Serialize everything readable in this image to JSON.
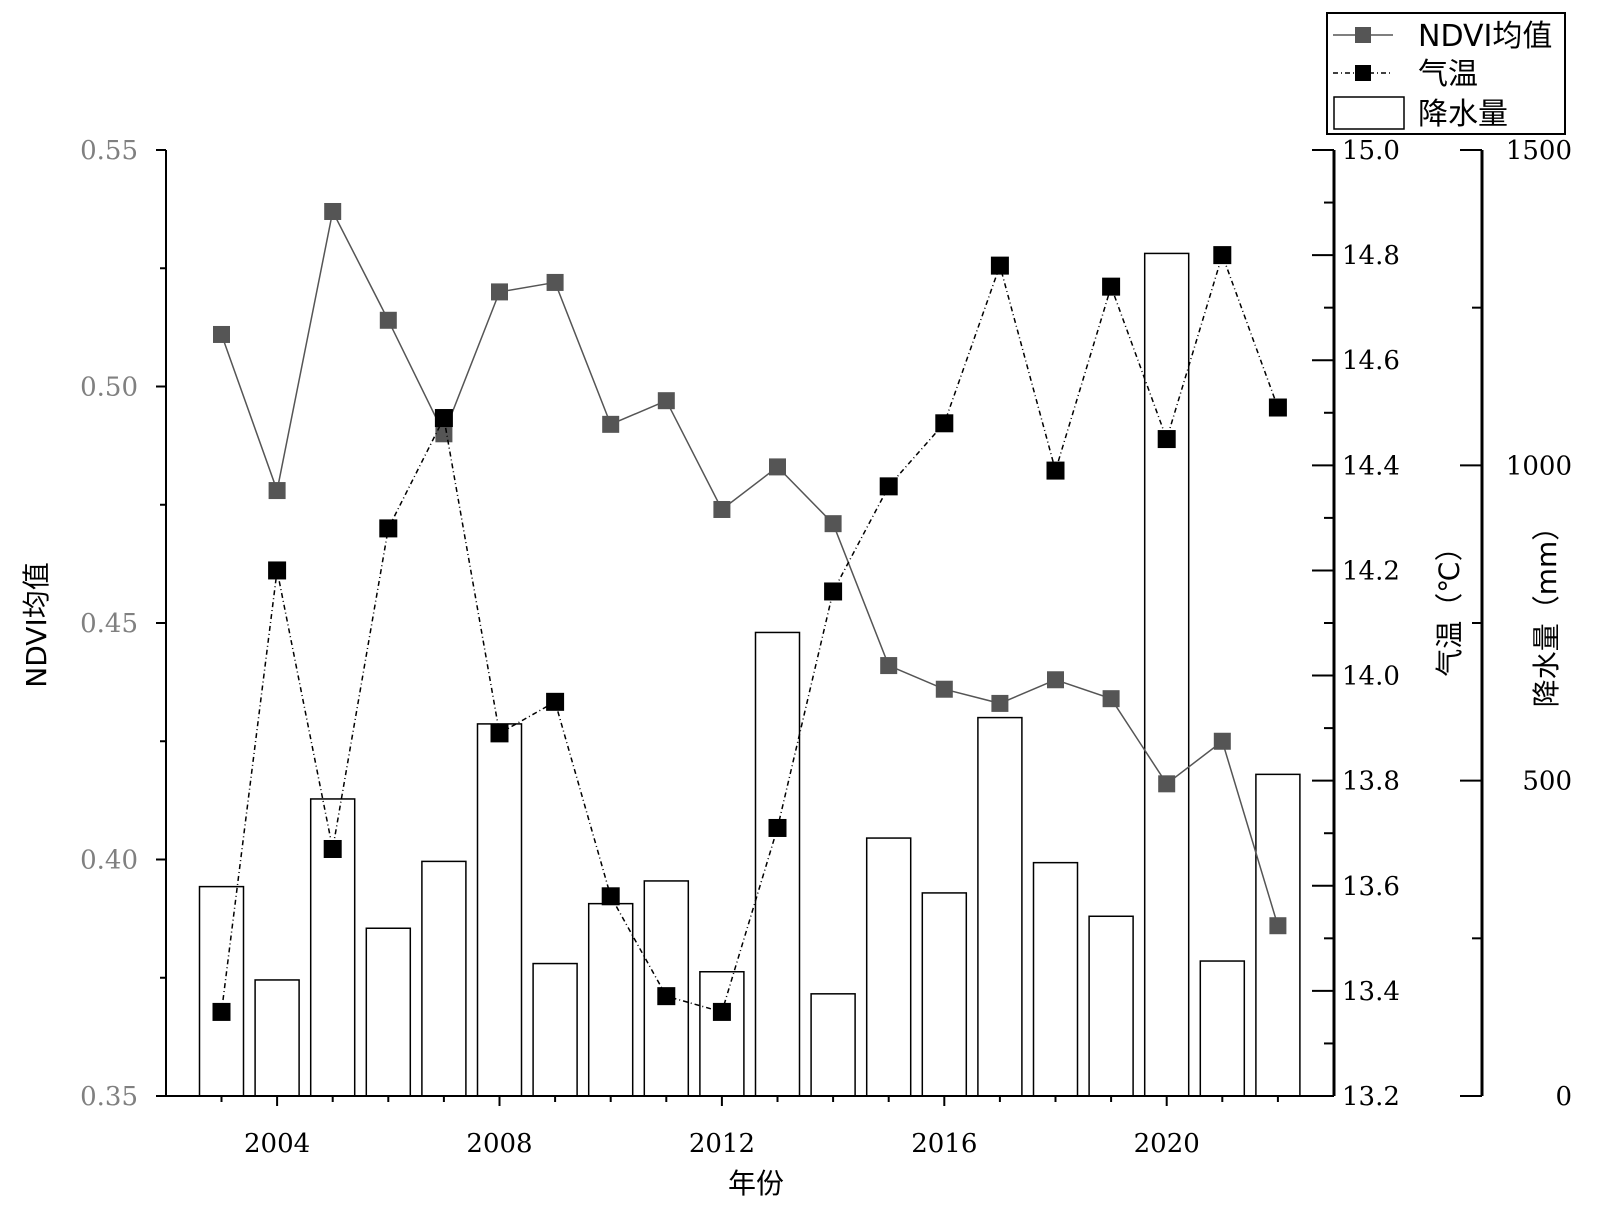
{
  "chart_data": {
    "type": "bar+line",
    "x_label": "年份",
    "x_ticks": [
      2004,
      2008,
      2012,
      2016,
      2020
    ],
    "x": [
      2003,
      2004,
      2005,
      2006,
      2007,
      2008,
      2009,
      2010,
      2011,
      2012,
      2013,
      2014,
      2015,
      2016,
      2017,
      2018,
      2019,
      2020,
      2021,
      2022
    ],
    "y_left": {
      "label": "NDVI均值",
      "range": [
        0.35,
        0.55
      ],
      "ticks": [
        "0.35",
        "0.40",
        "0.45",
        "0.50",
        "0.55"
      ],
      "tick_color": "#808080"
    },
    "y_right1": {
      "label": "气温（℃）",
      "range": [
        13.2,
        15.0
      ],
      "ticks": [
        "13.2",
        "13.4",
        "13.6",
        "13.8",
        "14.0",
        "14.2",
        "14.4",
        "14.6",
        "14.8",
        "15.0"
      ]
    },
    "y_right2": {
      "label": "降水量（mm）",
      "range": [
        0,
        1500
      ],
      "ticks": [
        "0",
        "500",
        "1000",
        "1500"
      ]
    },
    "series": [
      {
        "name": "NDVI均值",
        "axis": "left",
        "kind": "line",
        "color": "#555555",
        "values": [
          0.511,
          0.478,
          0.537,
          0.514,
          0.49,
          0.52,
          0.522,
          0.492,
          0.497,
          0.474,
          0.483,
          0.471,
          0.441,
          0.436,
          0.433,
          0.438,
          0.434,
          0.416,
          0.425,
          0.386
        ]
      },
      {
        "name": "气温",
        "axis": "right1",
        "kind": "line",
        "color": "#000000",
        "values": [
          13.36,
          14.2,
          13.67,
          14.28,
          14.49,
          13.89,
          13.95,
          13.58,
          13.39,
          13.36,
          13.71,
          14.16,
          14.36,
          14.48,
          14.78,
          14.39,
          14.74,
          14.45,
          14.8,
          14.51
        ]
      },
      {
        "name": "降水量",
        "axis": "right2",
        "kind": "bar",
        "color": "#ffffff",
        "values": [
          332,
          184,
          471,
          266,
          372,
          590,
          210,
          305,
          341,
          197,
          735,
          162,
          409,
          322,
          600,
          370,
          285,
          1336,
          214,
          510
        ]
      }
    ],
    "legend": {
      "position": "top-right",
      "entries": [
        "NDVI均值",
        "气温",
        "降水量"
      ]
    }
  }
}
